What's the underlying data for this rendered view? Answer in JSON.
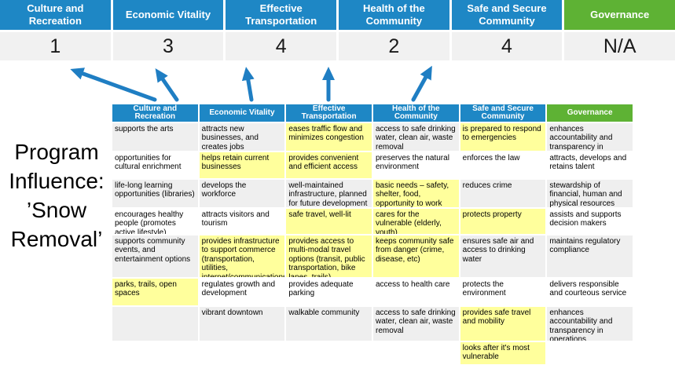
{
  "colors": {
    "pillar_blue": "#1E87C5",
    "governance_green": "#5EB234",
    "highlight_yellow": "#FFFF9C",
    "cell_gray": "#EFEFEF",
    "score_band_gray": "#F1F1F1",
    "arrow_blue": "#1F7EC3"
  },
  "program_label": "Program Influence: ’Snow Removal’",
  "scorecard": {
    "columns": [
      {
        "label": "Culture and Recreation",
        "score": "1",
        "green": false
      },
      {
        "label": "Economic Vitality",
        "score": "3",
        "green": false
      },
      {
        "label": "Effective Transportation",
        "score": "4",
        "green": false
      },
      {
        "label": "Health of the Community",
        "score": "2",
        "green": false
      },
      {
        "label": "Safe and Secure Community",
        "score": "4",
        "green": false
      },
      {
        "label": "Governance",
        "score": "N/A",
        "green": true
      }
    ]
  },
  "matrix": {
    "headers": [
      {
        "label": "Culture and Recreation",
        "green": false
      },
      {
        "label": "Economic Vitality",
        "green": false
      },
      {
        "label": "Effective Transportation",
        "green": false
      },
      {
        "label": "Health of the Community",
        "green": false
      },
      {
        "label": "Safe and Secure Community",
        "green": false
      },
      {
        "label": "Governance",
        "green": true
      }
    ],
    "rows": [
      [
        {
          "text": "supports the arts",
          "highlight": false
        },
        {
          "text": "attracts new businesses, and creates jobs",
          "highlight": false
        },
        {
          "text": "eases traffic flow and minimizes congestion",
          "highlight": true
        },
        {
          "text": "access to safe drinking water, clean air, waste removal",
          "highlight": false
        },
        {
          "text": "is prepared to respond to emergencies",
          "highlight": true
        },
        {
          "text": "enhances accountability and transparency in operations",
          "highlight": false
        }
      ],
      [
        {
          "text": "opportunities for cultural enrichment",
          "highlight": false
        },
        {
          "text": "helps retain current businesses",
          "highlight": true
        },
        {
          "text": "provides convenient and efficient access",
          "highlight": true
        },
        {
          "text": "preserves the natural environment",
          "highlight": false
        },
        {
          "text": "enforces the law",
          "highlight": false
        },
        {
          "text": "attracts, develops and retains talent",
          "highlight": false
        }
      ],
      [
        {
          "text": "life-long learning opportunities (libraries)",
          "highlight": false
        },
        {
          "text": "develops the workforce",
          "highlight": false
        },
        {
          "text": "well-maintained infrastructure, planned for future development",
          "highlight": false
        },
        {
          "text": "basic needs – safety, shelter, food, opportunity to work",
          "highlight": true
        },
        {
          "text": "reduces crime",
          "highlight": false
        },
        {
          "text": "stewardship of financial, human and physical resources",
          "highlight": false
        }
      ],
      [
        {
          "text": "encourages healthy people (promotes active lifestyle)",
          "highlight": false
        },
        {
          "text": "attracts visitors and tourism",
          "highlight": false
        },
        {
          "text": "safe travel, well-lit",
          "highlight": true
        },
        {
          "text": "cares for the vulnerable (elderly, youth)",
          "highlight": true
        },
        {
          "text": "protects property",
          "highlight": true
        },
        {
          "text": "assists and supports decision makers",
          "highlight": false
        }
      ],
      [
        {
          "text": "supports community events, and entertainment options",
          "highlight": false
        },
        {
          "text": "provides infrastructure to support commerce (transportation, utilities, internet/communications, smart cities, etc)",
          "highlight": true
        },
        {
          "text": "provides access to multi-modal travel options (transit, public transportation, bike lanes, trails)",
          "highlight": true
        },
        {
          "text": "keeps community safe from danger (crime, disease, etc)",
          "highlight": true
        },
        {
          "text": "ensures safe air and access to drinking water",
          "highlight": false
        },
        {
          "text": "maintains regulatory compliance",
          "highlight": false
        }
      ],
      [
        {
          "text": "parks, trails, open spaces",
          "highlight": true
        },
        {
          "text": "regulates growth and development",
          "highlight": false
        },
        {
          "text": "provides adequate parking",
          "highlight": false
        },
        {
          "text": "access to health care",
          "highlight": false
        },
        {
          "text": "protects the environment",
          "highlight": false
        },
        {
          "text": "delivers responsible and courteous service",
          "highlight": false
        }
      ],
      [
        {
          "text": "",
          "highlight": false
        },
        {
          "text": "vibrant downtown",
          "highlight": false
        },
        {
          "text": "walkable community",
          "highlight": false
        },
        {
          "text": "access to safe drinking water, clean air, waste removal",
          "highlight": false
        },
        {
          "text": "provides safe travel and mobility",
          "highlight": true
        },
        {
          "text": "enhances accountability and transparency in operations",
          "highlight": false
        }
      ],
      [
        {
          "text": "",
          "highlight": false
        },
        {
          "text": "",
          "highlight": false
        },
        {
          "text": "",
          "highlight": false
        },
        {
          "text": "",
          "highlight": false
        },
        {
          "text": "looks after it's most vulnerable",
          "highlight": true
        },
        {
          "text": "",
          "highlight": false
        }
      ]
    ]
  }
}
